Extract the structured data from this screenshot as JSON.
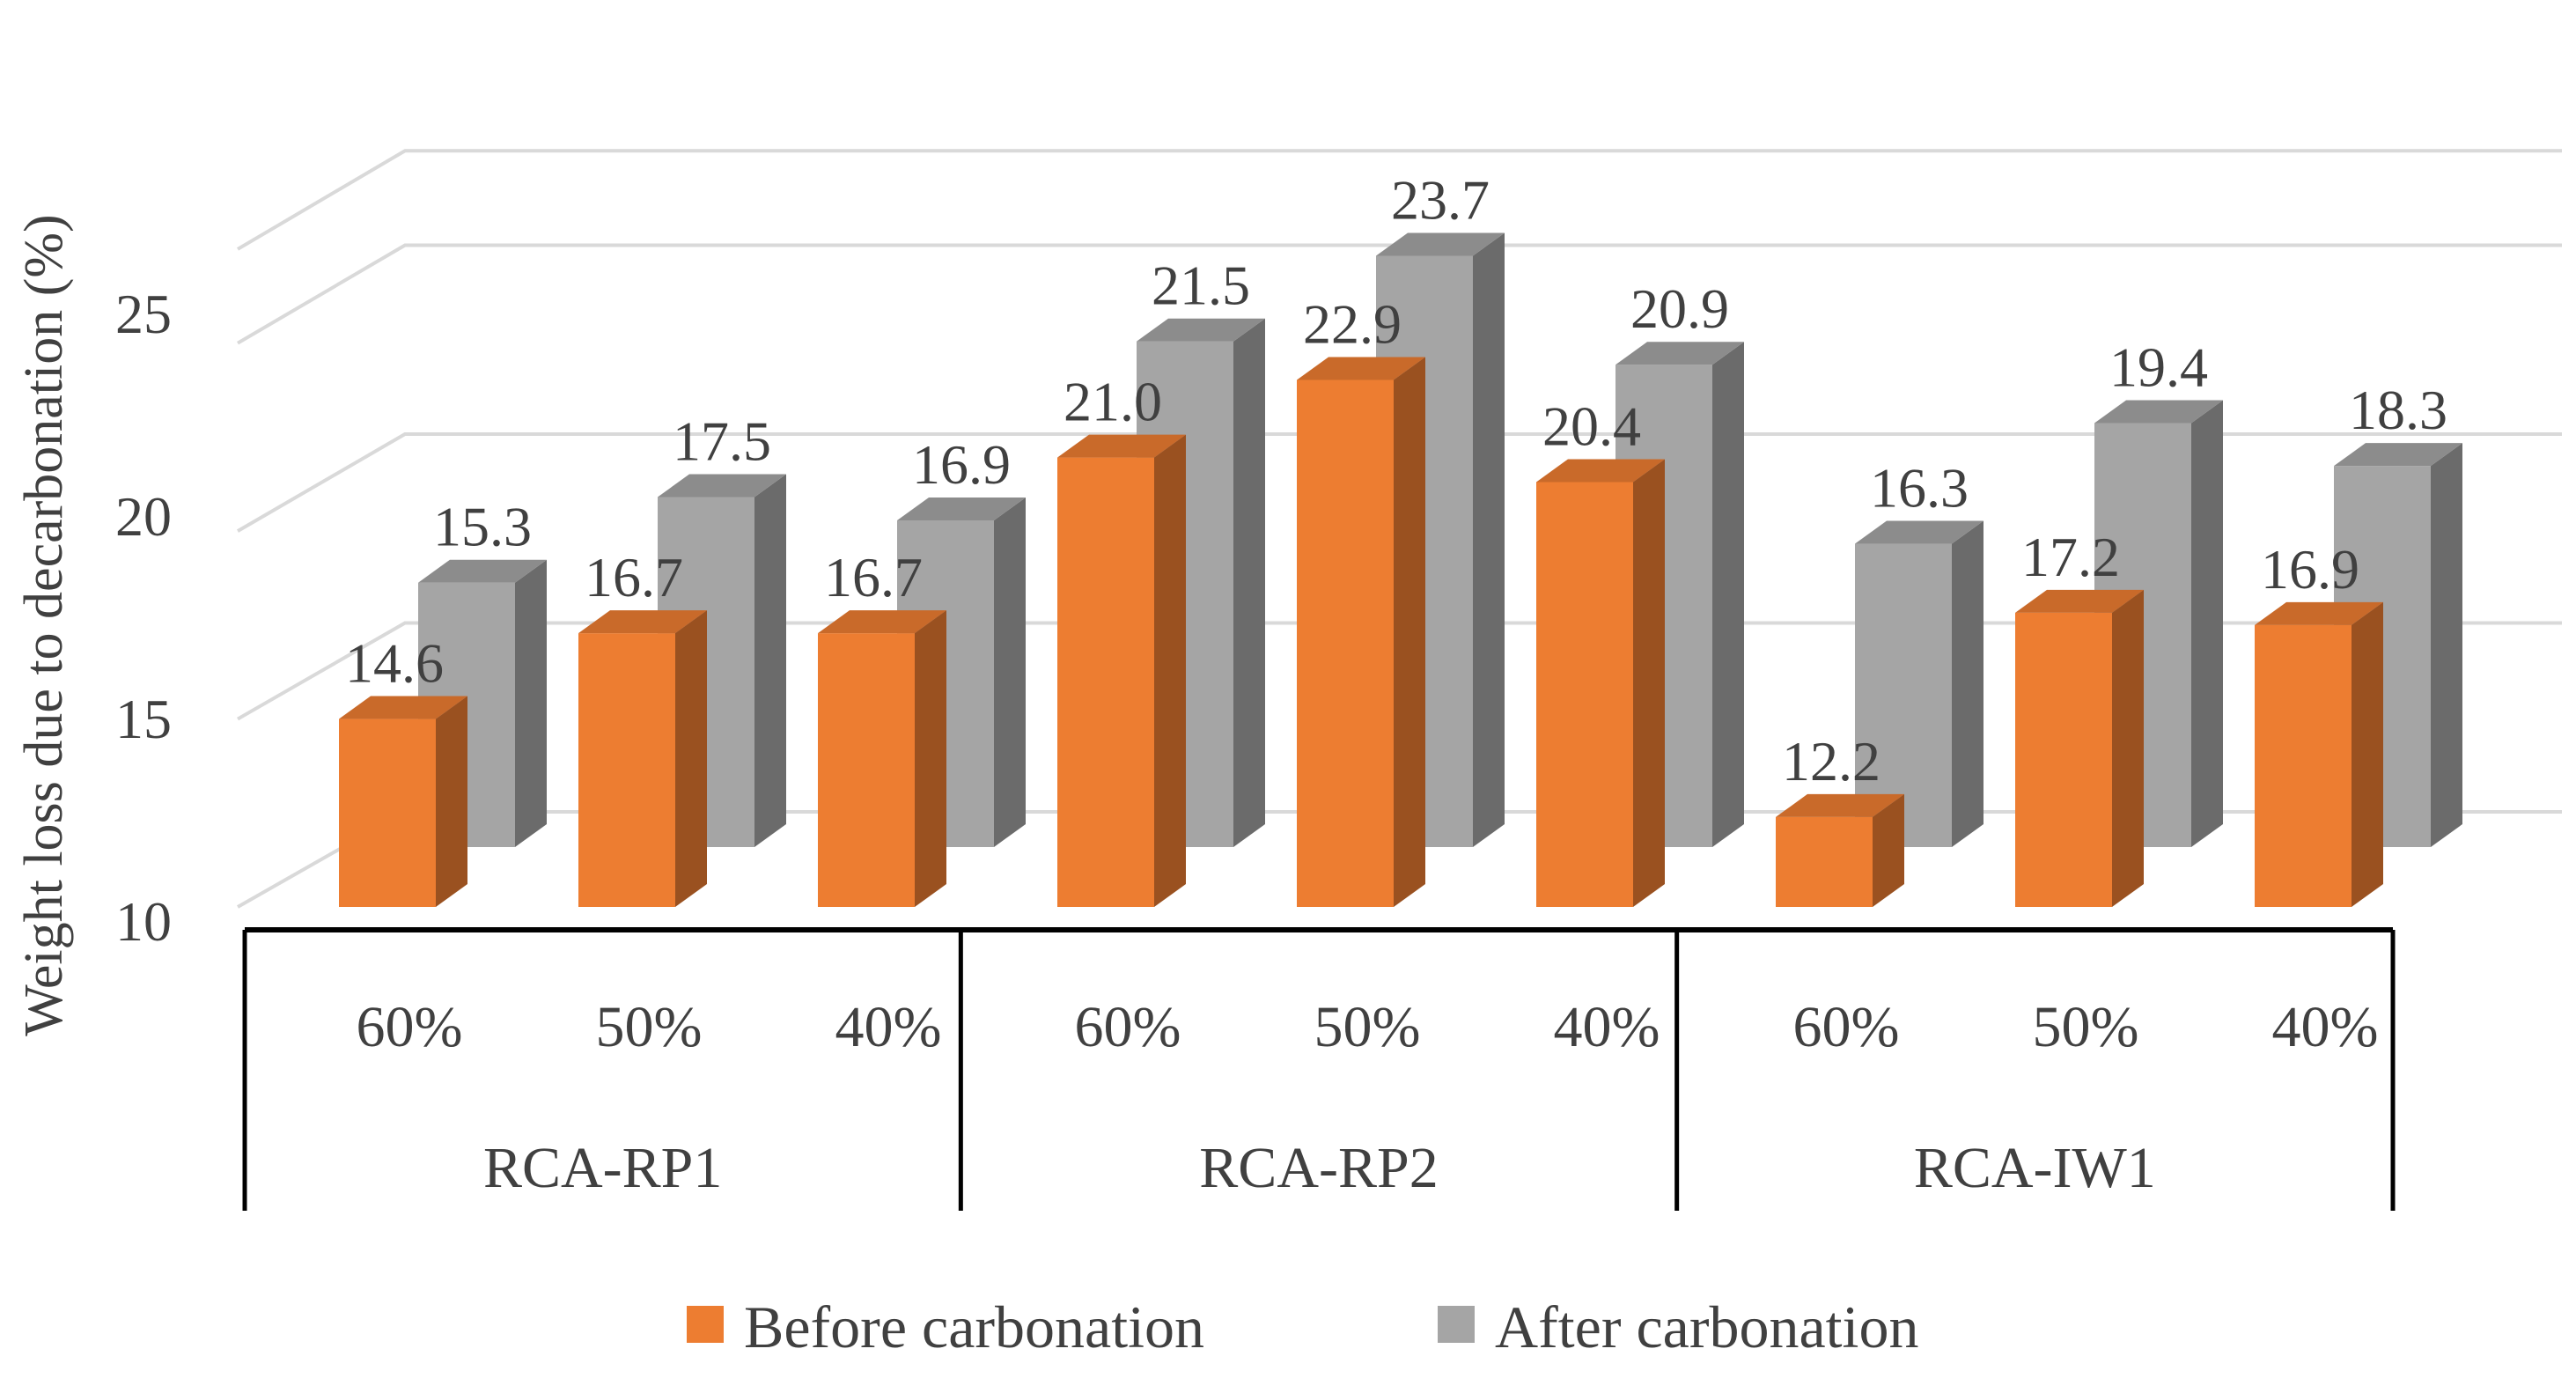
{
  "chart_data": {
    "type": "bar",
    "style": "3d-clustered",
    "title": "",
    "xlabel": "",
    "ylabel": "Weight loss due to decarbonation (%)",
    "ylim": [
      10,
      28
    ],
    "yticks": [
      10,
      15,
      20,
      25
    ],
    "grid": true,
    "legend_position": "bottom",
    "groups": [
      {
        "label": "RCA-RP1",
        "categories": [
          "60%",
          "50%",
          "40%"
        ]
      },
      {
        "label": "RCA-RP2",
        "categories": [
          "60%",
          "50%",
          "40%"
        ]
      },
      {
        "label": "RCA-IW1",
        "categories": [
          "60%",
          "50%",
          "40%"
        ]
      }
    ],
    "series": [
      {
        "name": "Before carbonation",
        "color": "#ED7D31",
        "values": [
          14.6,
          16.7,
          16.7,
          21.0,
          22.9,
          20.4,
          12.2,
          17.2,
          16.9
        ]
      },
      {
        "name": "After carbonation",
        "color": "#A5A5A5",
        "values": [
          15.3,
          17.5,
          16.9,
          21.5,
          23.7,
          20.9,
          16.3,
          19.4,
          18.3
        ]
      }
    ]
  }
}
